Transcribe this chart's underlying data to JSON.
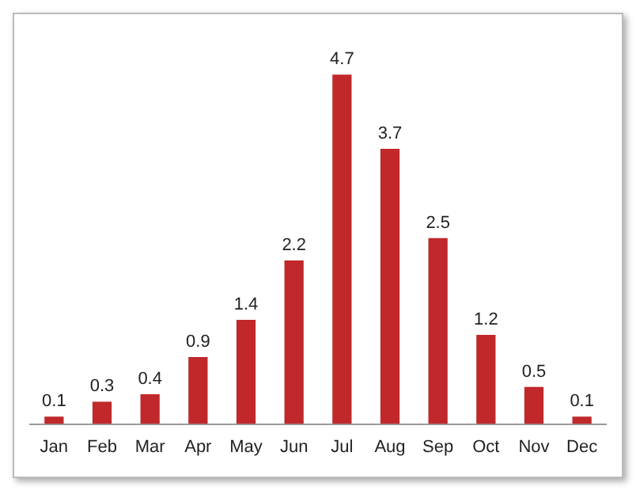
{
  "chart_data": {
    "type": "bar",
    "categories": [
      "Jan",
      "Feb",
      "Mar",
      "Apr",
      "May",
      "Jun",
      "Jul",
      "Aug",
      "Sep",
      "Oct",
      "Nov",
      "Dec"
    ],
    "values": [
      0.1,
      0.3,
      0.4,
      0.9,
      1.4,
      2.2,
      4.7,
      3.7,
      2.5,
      1.2,
      0.5,
      0.1
    ],
    "color": "#c0282b",
    "data_labels": true,
    "grid": false,
    "legend": false
  }
}
